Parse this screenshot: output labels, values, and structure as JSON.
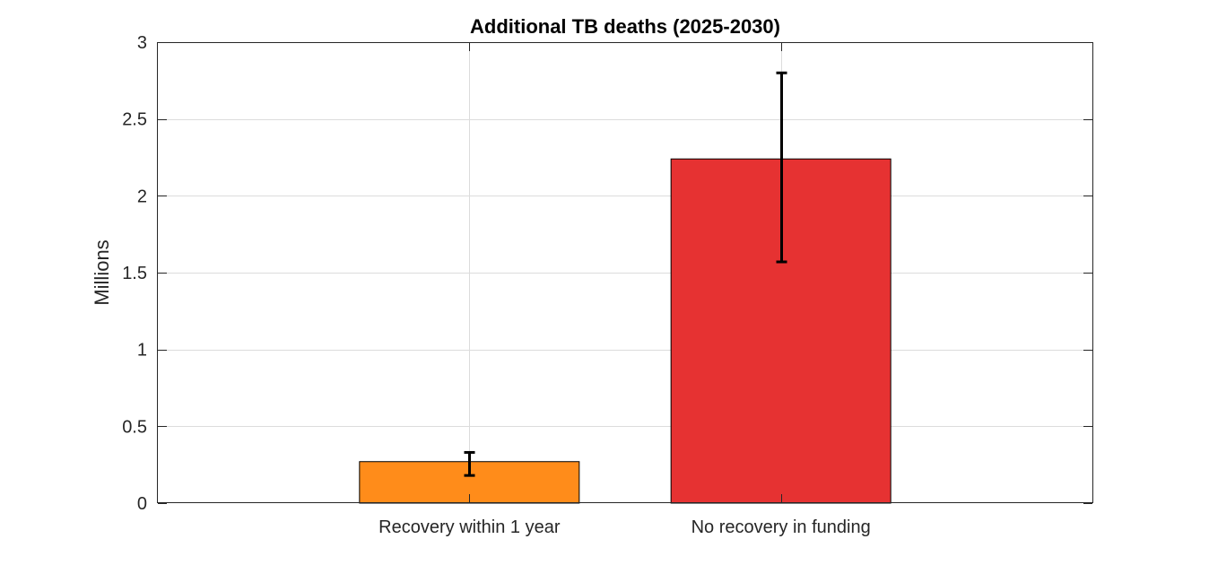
{
  "chart_data": {
    "type": "bar",
    "title": "Additional TB deaths (2025-2030)",
    "xlabel": "",
    "ylabel": "Millions",
    "categories": [
      "Recovery within 1 year",
      "No recovery in funding"
    ],
    "values": [
      0.27,
      2.24
    ],
    "error_low": [
      0.18,
      1.57
    ],
    "error_high": [
      0.33,
      2.8
    ],
    "colors": [
      "#ff8c1a",
      "#e63232"
    ],
    "ylim": [
      0,
      3
    ],
    "yticks": [
      "0",
      "0.5",
      "1",
      "1.5",
      "2",
      "2.5",
      "3"
    ],
    "grid": true
  }
}
